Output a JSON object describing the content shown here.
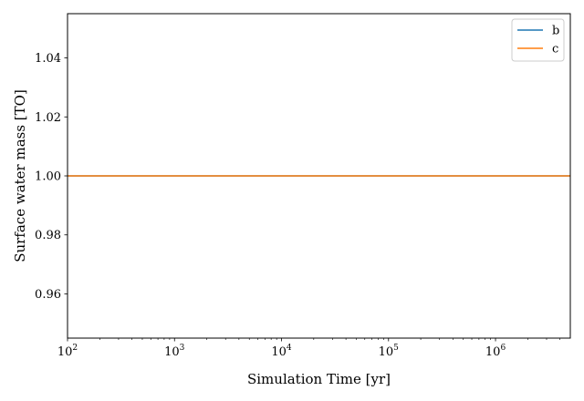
{
  "chart_data": {
    "type": "line",
    "title": "",
    "xlabel": "Simulation Time [yr]",
    "ylabel": "Surface water mass [TO]",
    "xscale": "log",
    "xlim": [
      100,
      5000000
    ],
    "ylim": [
      0.945,
      1.055
    ],
    "xticks": [
      {
        "value": 100,
        "base": "10",
        "exp": "2"
      },
      {
        "value": 1000,
        "base": "10",
        "exp": "3"
      },
      {
        "value": 10000,
        "base": "10",
        "exp": "4"
      },
      {
        "value": 100000,
        "base": "10",
        "exp": "5"
      },
      {
        "value": 1000000,
        "base": "10",
        "exp": "6"
      }
    ],
    "yticks": [
      {
        "value": 0.96,
        "label": "0.96"
      },
      {
        "value": 0.98,
        "label": "0.98"
      },
      {
        "value": 1.0,
        "label": "1.00"
      },
      {
        "value": 1.02,
        "label": "1.02"
      },
      {
        "value": 1.04,
        "label": "1.04"
      }
    ],
    "grid": false,
    "legend_position": "top-right",
    "series": [
      {
        "name": "b",
        "color": "#1f77b4",
        "x": [
          100,
          5000000
        ],
        "y": [
          1.0,
          1.0
        ]
      },
      {
        "name": "c",
        "color": "#ff7f0e",
        "x": [
          100,
          5000000
        ],
        "y": [
          1.0,
          1.0
        ]
      }
    ]
  }
}
